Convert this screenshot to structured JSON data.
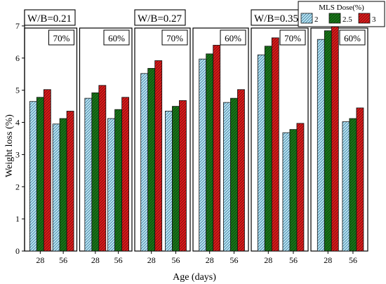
{
  "chart_data": {
    "type": "bar",
    "xlabel": "Age (days)",
    "ylabel": "Weight loss (%)",
    "ylim": [
      0,
      7.5
    ],
    "yticks": [
      0,
      1,
      2,
      3,
      4,
      5,
      6,
      7
    ],
    "categories": [
      "28",
      "56"
    ],
    "legend": {
      "title": "MLS Dose(%)",
      "placement": "top-right",
      "entries": [
        {
          "label": "2",
          "color": "#bfe6f5",
          "hatch": "#3a7f9e"
        },
        {
          "label": "2.5",
          "color": "#1a7a1a",
          "hatch": "#0a3f0a"
        },
        {
          "label": "3",
          "color": "#dd1c1c",
          "hatch": "#7a0a0a"
        }
      ]
    },
    "groups": [
      {
        "label": "W/B=0.21",
        "panels": [
          {
            "label": "70%",
            "values": [
              [
                4.65,
                4.78,
                5.02
              ],
              [
                3.95,
                4.12,
                4.35
              ]
            ]
          },
          {
            "label": "60%",
            "values": [
              [
                4.75,
                4.92,
                5.15
              ],
              [
                4.12,
                4.4,
                4.78
              ]
            ]
          }
        ]
      },
      {
        "label": "W/B=0.27",
        "panels": [
          {
            "label": "70%",
            "values": [
              [
                5.52,
                5.68,
                5.92
              ],
              [
                4.35,
                4.5,
                4.68
              ]
            ]
          },
          {
            "label": "60%",
            "values": [
              [
                5.97,
                6.13,
                6.4
              ],
              [
                4.62,
                4.75,
                5.02
              ]
            ]
          }
        ]
      },
      {
        "label": "W/B=0.35",
        "panels": [
          {
            "label": "70%",
            "values": [
              [
                6.1,
                6.37,
                6.63
              ],
              [
                3.68,
                3.78,
                3.97
              ]
            ]
          },
          {
            "label": "60%",
            "values": [
              [
                6.58,
                6.85,
                7.12
              ],
              [
                4.02,
                4.12,
                4.45
              ]
            ]
          }
        ]
      }
    ]
  }
}
